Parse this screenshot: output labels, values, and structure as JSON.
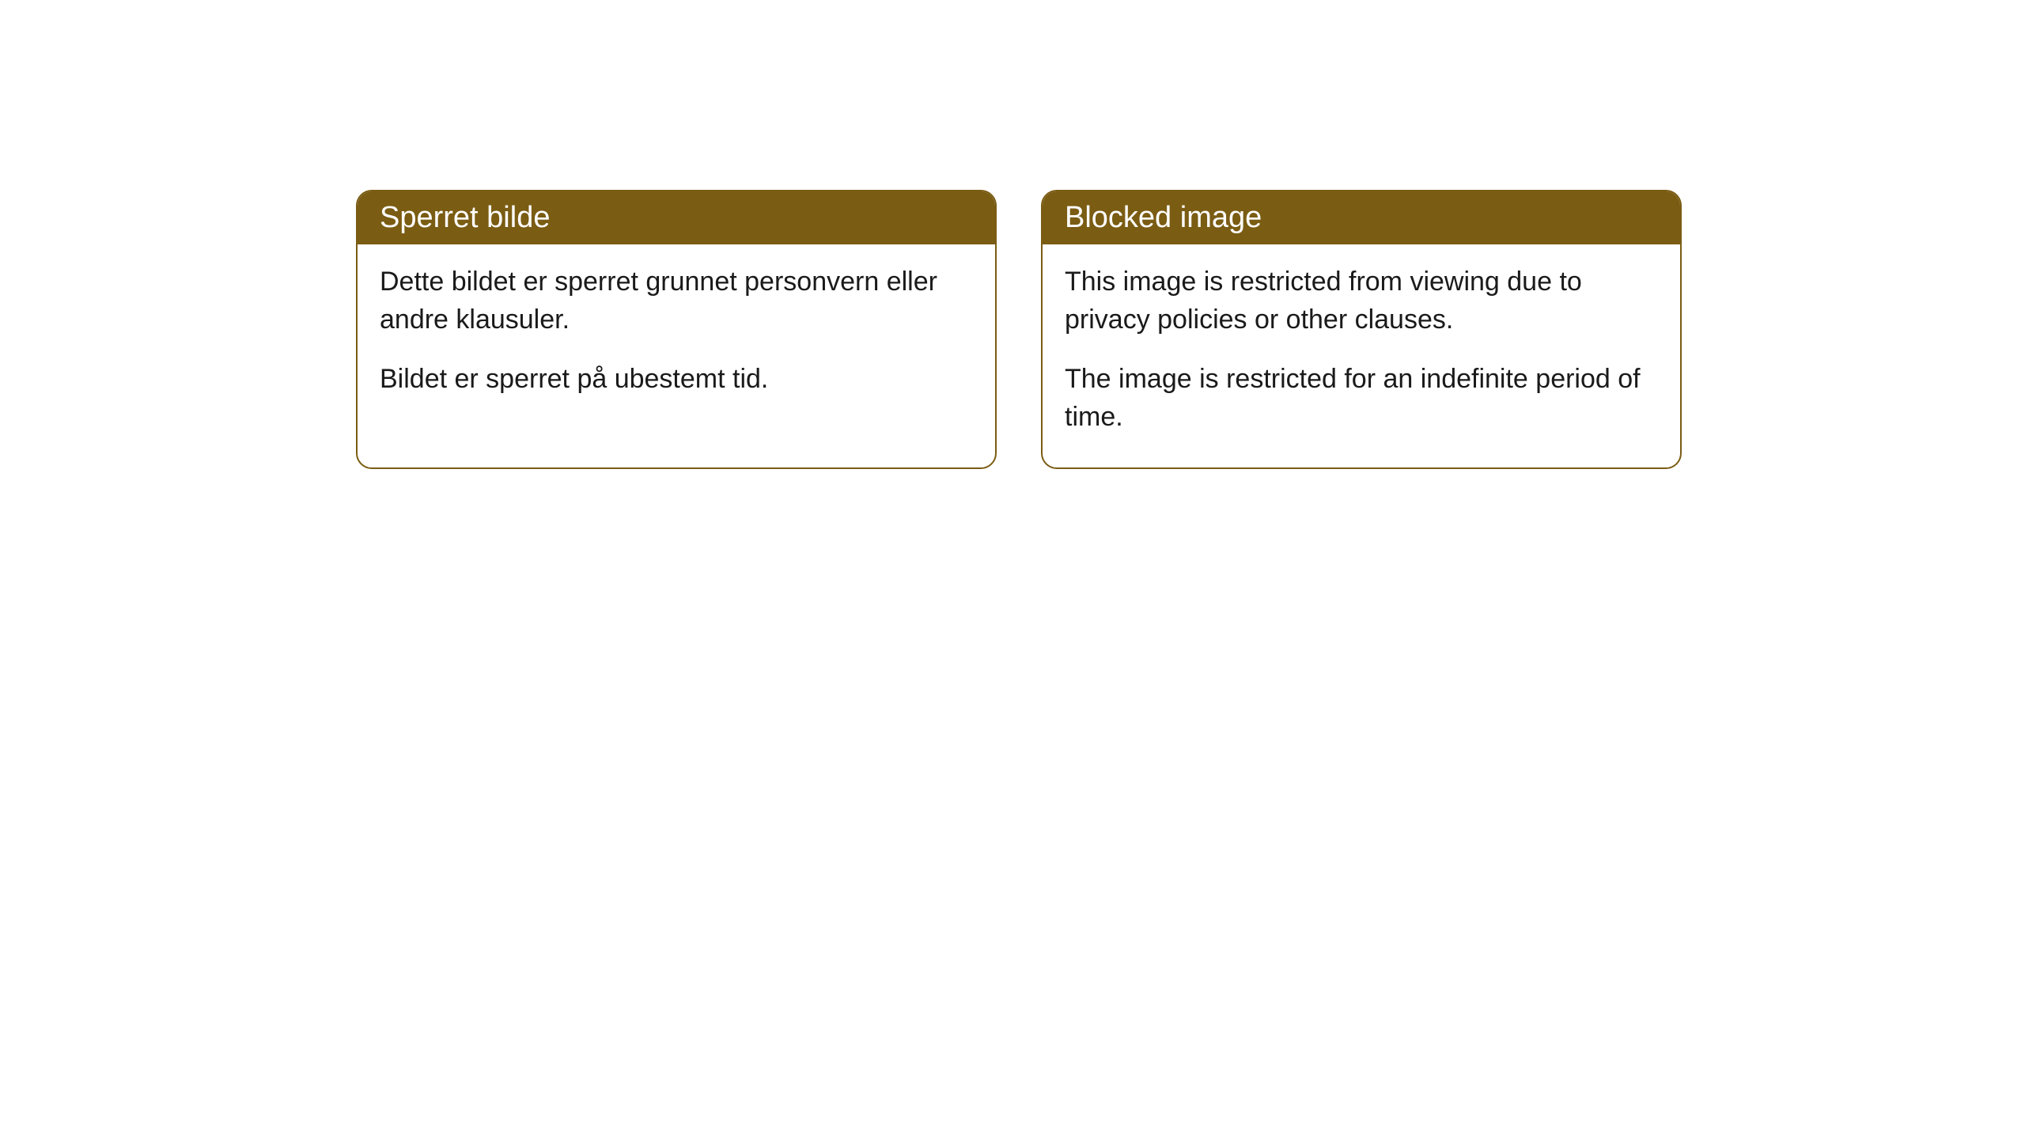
{
  "cards": [
    {
      "title": "Sperret bilde",
      "paragraph1": "Dette bildet er sperret grunnet personvern eller andre klausuler.",
      "paragraph2": "Bildet er sperret på ubestemt tid."
    },
    {
      "title": "Blocked image",
      "paragraph1": "This image is restricted from viewing due to privacy policies or other clauses.",
      "paragraph2": "The image is restricted for an indefinite period of time."
    }
  ],
  "styling": {
    "header_background": "#7a5c13",
    "header_text_color": "#ffffff",
    "border_color": "#7a5c13",
    "body_background": "#ffffff",
    "body_text_color": "#1a1a1a",
    "border_radius": 20,
    "header_fontsize": 38,
    "body_fontsize": 34
  }
}
